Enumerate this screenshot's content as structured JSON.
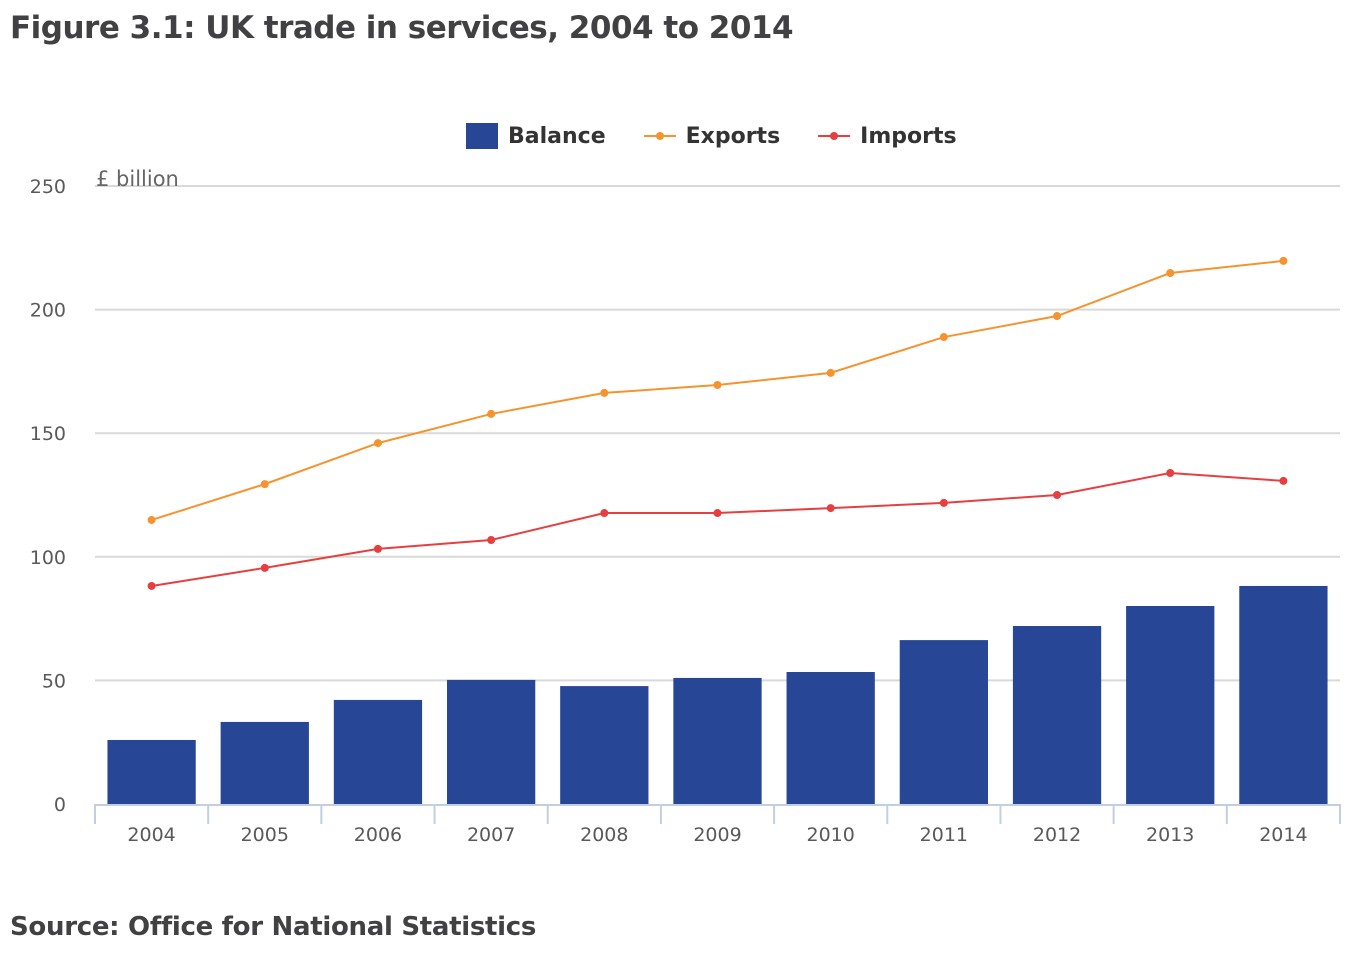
{
  "title": "Figure 3.1: UK trade in services, 2004 to 2014",
  "source": "Source: Office for National Statistics",
  "colors": {
    "balance": "#274796",
    "exports": "#f5942f",
    "imports": "#e73f40",
    "grid": "#d9d9d9",
    "axis": "#c0d0e0"
  },
  "chart_data": {
    "type": "bar",
    "title": "Figure 3.1: UK trade in services, 2004 to 2014",
    "xlabel": "",
    "ylabel": "£ billion",
    "categories": [
      "2004",
      "2005",
      "2006",
      "2007",
      "2008",
      "2009",
      "2010",
      "2011",
      "2012",
      "2013",
      "2014"
    ],
    "ylim": [
      0,
      250
    ],
    "yticks": [
      0,
      50,
      100,
      150,
      200,
      250
    ],
    "grid": true,
    "legend_position": "top-center",
    "series": [
      {
        "name": "Balance",
        "type": "bar",
        "color": "#274796",
        "values": [
          25.9,
          33.2,
          42.1,
          50.2,
          47.7,
          51.0,
          53.4,
          66.3,
          72.0,
          80.1,
          88.2
        ]
      },
      {
        "name": "Exports",
        "type": "line",
        "color": "#f5942f",
        "values": [
          114.9,
          129.4,
          146.0,
          157.8,
          166.3,
          169.5,
          174.4,
          188.9,
          197.4,
          214.8,
          219.7
        ]
      },
      {
        "name": "Imports",
        "type": "line",
        "color": "#e73f40",
        "values": [
          88.2,
          95.5,
          103.2,
          106.8,
          117.7,
          117.7,
          119.7,
          121.8,
          125.0,
          133.9,
          130.7
        ]
      }
    ]
  }
}
